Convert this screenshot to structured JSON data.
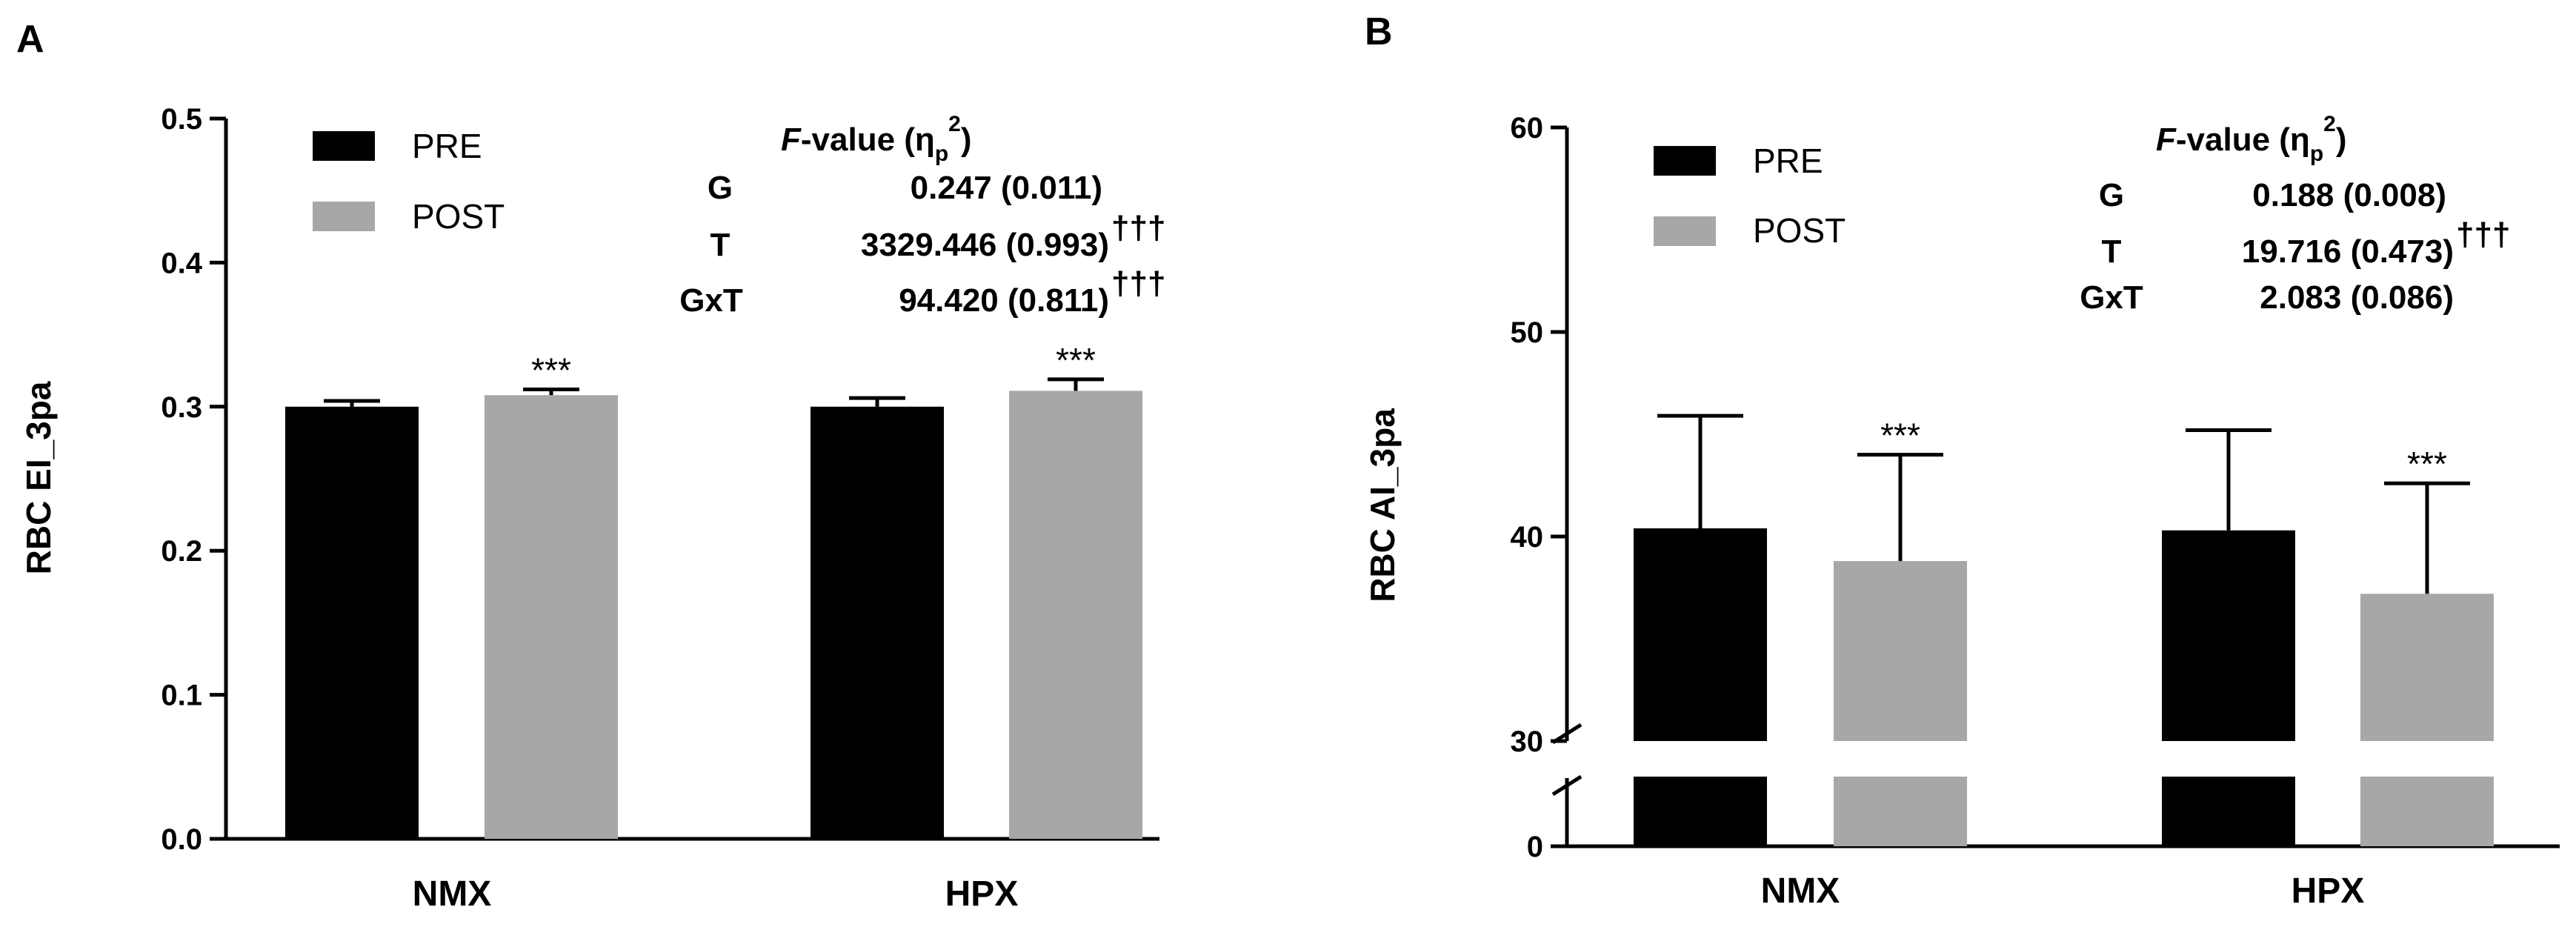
{
  "panels": {
    "a": {
      "label": "A"
    },
    "b": {
      "label": "B"
    }
  },
  "legend": {
    "pre": "PRE",
    "post": "POST"
  },
  "colors": {
    "pre": "#000000",
    "post": "#a7a6a9",
    "axis": "#000000"
  },
  "stats_a": {
    "header_f": "F",
    "header_rest": "-value (η",
    "header_sub": "p",
    "header_sup": "2",
    "header_close": ")",
    "rows": [
      {
        "term": "G",
        "value": "0.247 (0.011)",
        "dagger": ""
      },
      {
        "term": "T",
        "value": "3329.446 (0.993)",
        "dagger": "†††"
      },
      {
        "term": "GxT",
        "value": "94.420 (0.811)",
        "dagger": "†††"
      }
    ]
  },
  "stats_b": {
    "header_f": "F",
    "header_rest": "-value (η",
    "header_sub": "p",
    "header_sup": "2",
    "header_close": ")",
    "rows": [
      {
        "term": "G",
        "value": "0.188 (0.008)",
        "dagger": ""
      },
      {
        "term": "T",
        "value": "19.716 (0.473)",
        "dagger": "†††"
      },
      {
        "term": "GxT",
        "value": "2.083 (0.086)",
        "dagger": ""
      }
    ]
  },
  "chart_data": [
    {
      "type": "bar",
      "panel": "A",
      "ylabel": "RBC EI_3pa",
      "xlabel": "",
      "ylim": [
        0,
        0.5
      ],
      "yticks": [
        "0.0",
        "0.1",
        "0.2",
        "0.3",
        "0.4",
        "0.5"
      ],
      "categories": [
        "NMX",
        "HPX"
      ],
      "series": [
        {
          "name": "PRE",
          "values": [
            0.3,
            0.3
          ],
          "errors": [
            0.004,
            0.006
          ],
          "significance": [
            "",
            ""
          ]
        },
        {
          "name": "POST",
          "values": [
            0.308,
            0.311
          ],
          "errors": [
            0.004,
            0.008
          ],
          "significance": [
            "***",
            "***"
          ]
        }
      ]
    },
    {
      "type": "bar",
      "panel": "B",
      "ylabel": "RBC AI_3pa",
      "xlabel": "",
      "ylim": [
        0,
        60
      ],
      "axis_break": [
        0,
        30
      ],
      "yticks": [
        "0",
        "30",
        "40",
        "50",
        "60"
      ],
      "categories": [
        "NMX",
        "HPX"
      ],
      "series": [
        {
          "name": "PRE",
          "values": [
            40.4,
            40.3
          ],
          "errors": [
            5.5,
            4.9
          ],
          "significance": [
            "",
            ""
          ]
        },
        {
          "name": "POST",
          "values": [
            38.8,
            37.2
          ],
          "errors": [
            5.2,
            5.4
          ],
          "significance": [
            "***",
            "***"
          ]
        }
      ]
    }
  ]
}
